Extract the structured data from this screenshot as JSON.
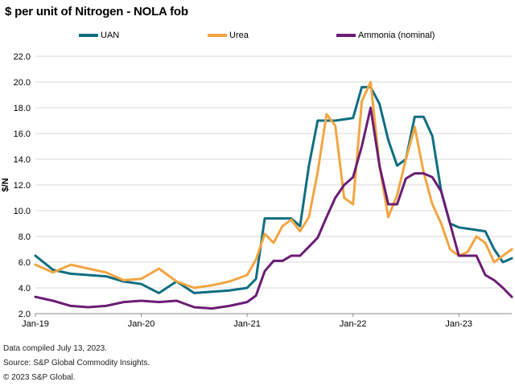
{
  "title": "$ per unit of Nitrogen - NOLA fob",
  "footer": {
    "line1": "Data compiled July 13, 2023.",
    "line2": "Source: S&P Global Commodity Insights.",
    "line3": "© 2023 S&P Global."
  },
  "chart_data": {
    "type": "line",
    "title": "$ per unit of Nitrogen - NOLA fob",
    "xlabel": "",
    "ylabel": "$/N",
    "ylim": [
      2.0,
      22.0
    ],
    "yticks": [
      "2.0",
      "4.0",
      "6.0",
      "8.0",
      "10.0",
      "12.0",
      "14.0",
      "16.0",
      "18.0",
      "20.0",
      "22.0"
    ],
    "xticks": [
      "Jan-19",
      "Jan-20",
      "Jan-21",
      "Jan-22",
      "Jan-23"
    ],
    "xrange": [
      "2019-01",
      "2023-07"
    ],
    "grid": "horizontal",
    "legend": "top",
    "series": [
      {
        "name": "UAN",
        "color": "#0e6e82",
        "x": [
          "2019-01",
          "2019-03",
          "2019-05",
          "2019-07",
          "2019-09",
          "2019-11",
          "2020-01",
          "2020-03",
          "2020-05",
          "2020-07",
          "2020-09",
          "2020-11",
          "2021-01",
          "2021-02",
          "2021-03",
          "2021-04",
          "2021-05",
          "2021-06",
          "2021-07",
          "2021-08",
          "2021-09",
          "2021-10",
          "2021-11",
          "2021-12",
          "2022-01",
          "2022-02",
          "2022-03",
          "2022-04",
          "2022-05",
          "2022-06",
          "2022-07",
          "2022-08",
          "2022-09",
          "2022-10",
          "2022-11",
          "2022-12",
          "2023-01",
          "2023-02",
          "2023-03",
          "2023-04",
          "2023-05",
          "2023-06",
          "2023-07"
        ],
        "values": [
          6.5,
          5.4,
          5.1,
          5.0,
          4.9,
          4.5,
          4.3,
          3.6,
          4.5,
          3.6,
          3.7,
          3.8,
          4.0,
          4.7,
          9.4,
          9.4,
          9.4,
          9.4,
          8.8,
          13.5,
          17.0,
          17.0,
          17.0,
          17.1,
          17.2,
          19.6,
          19.6,
          18.3,
          15.5,
          13.5,
          14.0,
          17.3,
          17.3,
          15.8,
          11.5,
          9.0,
          8.7,
          8.6,
          8.5,
          8.4,
          7.0,
          6.0,
          6.3
        ]
      },
      {
        "name": "Urea",
        "color": "#f2a541",
        "x": [
          "2019-01",
          "2019-03",
          "2019-05",
          "2019-07",
          "2019-09",
          "2019-11",
          "2020-01",
          "2020-03",
          "2020-05",
          "2020-07",
          "2020-09",
          "2020-11",
          "2021-01",
          "2021-02",
          "2021-03",
          "2021-04",
          "2021-05",
          "2021-06",
          "2021-07",
          "2021-08",
          "2021-09",
          "2021-10",
          "2021-11",
          "2021-12",
          "2022-01",
          "2022-02",
          "2022-03",
          "2022-04",
          "2022-05",
          "2022-06",
          "2022-07",
          "2022-08",
          "2022-09",
          "2022-10",
          "2022-11",
          "2022-12",
          "2023-01",
          "2023-02",
          "2023-03",
          "2023-04",
          "2023-05",
          "2023-06",
          "2023-07"
        ],
        "values": [
          5.8,
          5.2,
          5.8,
          5.5,
          5.2,
          4.6,
          4.7,
          5.5,
          4.5,
          4.0,
          4.2,
          4.5,
          5.0,
          6.2,
          8.2,
          7.5,
          8.8,
          9.3,
          8.4,
          9.5,
          13.0,
          17.5,
          16.6,
          11.0,
          10.5,
          18.5,
          20.0,
          13.5,
          9.5,
          11.2,
          14.0,
          16.5,
          13.0,
          10.5,
          9.0,
          7.0,
          6.5,
          6.8,
          8.0,
          7.5,
          6.0,
          6.5,
          7.0
        ]
      },
      {
        "name": "Ammonia (nominal)",
        "color": "#6b1d74",
        "x": [
          "2019-01",
          "2019-03",
          "2019-05",
          "2019-07",
          "2019-09",
          "2019-11",
          "2020-01",
          "2020-03",
          "2020-05",
          "2020-07",
          "2020-09",
          "2020-11",
          "2021-01",
          "2021-02",
          "2021-03",
          "2021-04",
          "2021-05",
          "2021-06",
          "2021-07",
          "2021-08",
          "2021-09",
          "2021-10",
          "2021-11",
          "2021-12",
          "2022-01",
          "2022-02",
          "2022-03",
          "2022-04",
          "2022-05",
          "2022-06",
          "2022-07",
          "2022-08",
          "2022-09",
          "2022-10",
          "2022-11",
          "2022-12",
          "2023-01",
          "2023-02",
          "2023-03",
          "2023-04",
          "2023-05",
          "2023-06",
          "2023-07"
        ],
        "values": [
          3.3,
          3.0,
          2.6,
          2.5,
          2.6,
          2.9,
          3.0,
          2.9,
          3.0,
          2.5,
          2.4,
          2.6,
          2.9,
          3.4,
          5.3,
          6.1,
          6.1,
          6.5,
          6.5,
          7.2,
          7.9,
          9.5,
          11.0,
          12.0,
          12.6,
          15.0,
          18.0,
          13.5,
          10.5,
          10.5,
          12.5,
          12.9,
          12.9,
          12.6,
          11.5,
          9.0,
          6.5,
          6.5,
          6.5,
          5.0,
          4.6,
          4.0,
          3.3
        ]
      }
    ]
  }
}
